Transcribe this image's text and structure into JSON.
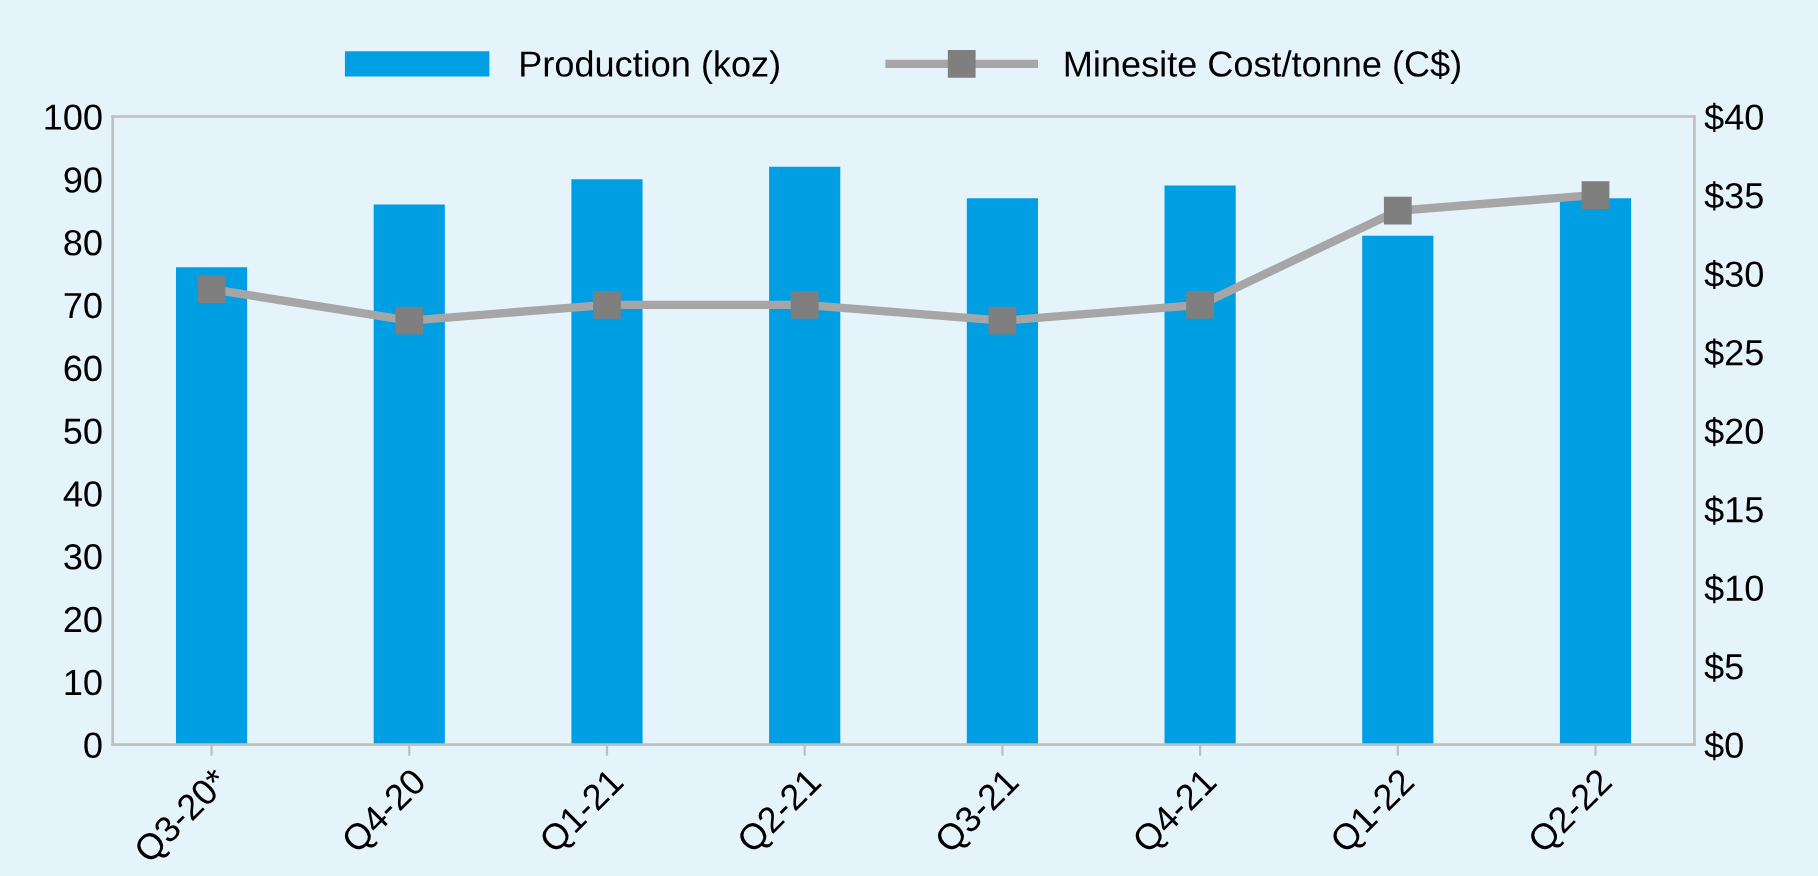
{
  "chart_data": {
    "type": "bar",
    "categories": [
      "Q3-20*",
      "Q4-20",
      "Q1-21",
      "Q2-21",
      "Q3-21",
      "Q4-21",
      "Q1-22",
      "Q2-22"
    ],
    "series": [
      {
        "name": "Production (koz)",
        "color": "#009fe3",
        "values": [
          76,
          86,
          90,
          92,
          87,
          89,
          81,
          87
        ]
      },
      {
        "name": "Minesite Cost/tonne (C$)",
        "type": "line",
        "axis": "y2",
        "color": "#a6a6a6",
        "marker": "square",
        "values": [
          29,
          27,
          28,
          28,
          27,
          28,
          34,
          35
        ]
      }
    ],
    "ylim": [
      0,
      100
    ],
    "yticks": [
      0,
      10,
      20,
      30,
      40,
      50,
      60,
      70,
      80,
      90,
      100
    ],
    "y2lim": [
      0,
      40
    ],
    "y2ticks": [
      {
        "value": 0,
        "label": "$0"
      },
      {
        "value": 5,
        "label": "$5"
      },
      {
        "value": 10,
        "label": "$10"
      },
      {
        "value": 15,
        "label": "$15"
      },
      {
        "value": 20,
        "label": "$20"
      },
      {
        "value": 25,
        "label": "$25"
      },
      {
        "value": 30,
        "label": "$30"
      },
      {
        "value": 35,
        "label": "$35"
      },
      {
        "value": 40,
        "label": "$40"
      }
    ],
    "grid": false,
    "legend": "top"
  }
}
